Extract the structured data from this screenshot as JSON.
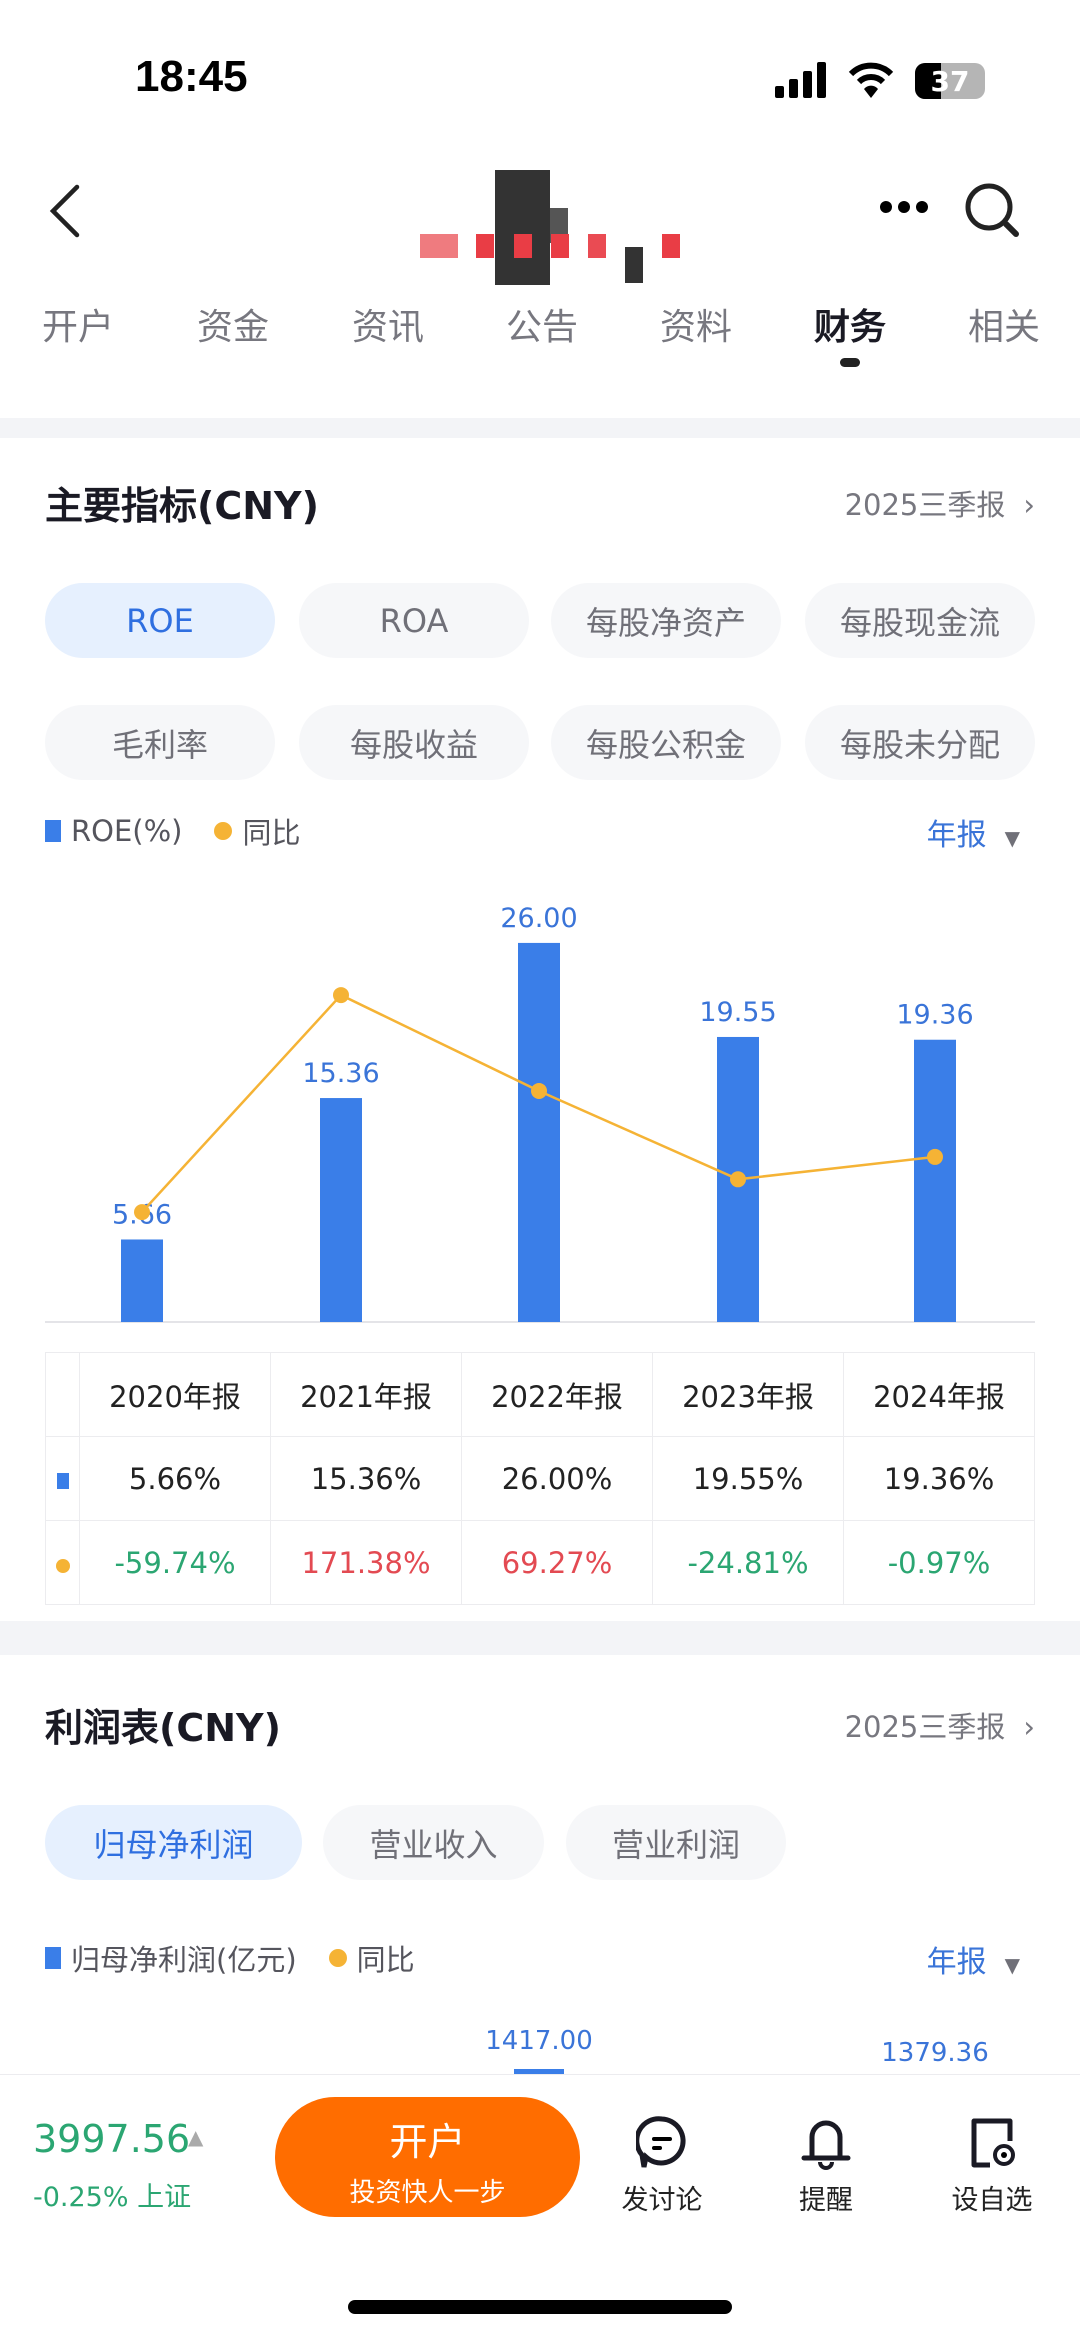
{
  "status_bar": {
    "time": "18:45",
    "battery": "37"
  },
  "tabs": [
    {
      "label": "开户"
    },
    {
      "label": "资金"
    },
    {
      "label": "资讯"
    },
    {
      "label": "公告"
    },
    {
      "label": "资料"
    },
    {
      "label": "财务",
      "active": true
    },
    {
      "label": "相关"
    }
  ],
  "indicators": {
    "title": "主要指标(CNY)",
    "period_link": "2025三季报",
    "chips": [
      {
        "label": "ROE",
        "active": true
      },
      {
        "label": "ROA"
      },
      {
        "label": "每股净资产"
      },
      {
        "label": "每股现金流"
      },
      {
        "label": "毛利率"
      },
      {
        "label": "每股收益"
      },
      {
        "label": "每股公积金"
      },
      {
        "label": "每股未分配"
      }
    ],
    "legend": {
      "bar": "ROE(%)",
      "line": "同比"
    },
    "period_select": "年报",
    "table": {
      "headers": [
        "2020年报",
        "2021年报",
        "2022年报",
        "2023年报",
        "2024年报"
      ],
      "roe": [
        "5.66%",
        "15.36%",
        "26.00%",
        "19.55%",
        "19.36%"
      ],
      "yoy": [
        "-59.74%",
        "171.38%",
        "69.27%",
        "-24.81%",
        "-0.97%"
      ]
    }
  },
  "chart_data": [
    {
      "type": "bar+line",
      "categories": [
        "2020年报",
        "2021年报",
        "2022年报",
        "2023年报",
        "2024年报"
      ],
      "series": [
        {
          "name": "ROE(%)",
          "type": "bar",
          "values": [
            5.66,
            15.36,
            26.0,
            19.55,
            19.36
          ],
          "labels": [
            "5.66",
            "15.36",
            "26.00",
            "19.55",
            "19.36"
          ],
          "color": "#3a7ee8"
        },
        {
          "name": "同比",
          "type": "line",
          "values": [
            -59.74,
            171.38,
            69.27,
            -24.81,
            -0.97
          ],
          "color": "#f5b335"
        }
      ],
      "grid": false
    },
    {
      "type": "bar",
      "partial": true,
      "visible_labels": [
        "1417.00",
        "1379.36"
      ]
    }
  ],
  "profit": {
    "title": "利润表(CNY)",
    "period_link": "2025三季报",
    "chips": [
      {
        "label": "归母净利润",
        "active": true
      },
      {
        "label": "营业收入"
      },
      {
        "label": "营业利润"
      }
    ],
    "legend": {
      "bar": "归母净利润(亿元)",
      "line": "同比"
    },
    "period_select": "年报"
  },
  "bottom": {
    "index_value": "3997.56",
    "index_change": "-0.25%",
    "index_name": "上证",
    "open_button": {
      "title": "开户",
      "subtitle": "投资快人一步"
    },
    "actions": [
      {
        "label": "发讨论",
        "icon": "chat-icon"
      },
      {
        "label": "提醒",
        "icon": "bell-icon"
      },
      {
        "label": "设自选",
        "icon": "add-watchlist-icon"
      }
    ]
  },
  "colors": {
    "accent": "#3a7ee8",
    "orange": "#ff6d00",
    "up": "#e34a52",
    "down": "#2ba672",
    "line": "#f5b335"
  }
}
